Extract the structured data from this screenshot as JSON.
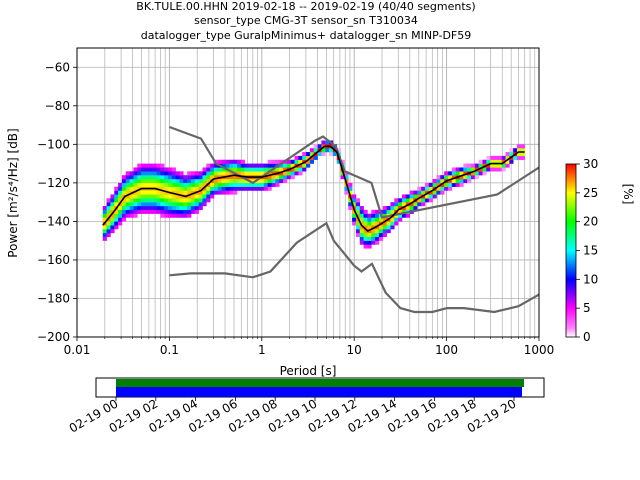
{
  "title": {
    "line1": "BK.TULE.00.HHN   2019-02-18 -- 2019-02-19  (40/40 segments)",
    "line2": "sensor_type CMG-3T sensor_sn T310034",
    "line3": "datalogger_type GuralpMinimus+ datalogger_sn MINP-DF59"
  },
  "chart_data": {
    "type": "heatmap",
    "x_scale": "log",
    "xlim": [
      0.01,
      1000
    ],
    "ylim": [
      -200,
      -50
    ],
    "xlabel": "Period [s]",
    "ylabel": "Power [m²/s⁴/Hz] [dB]",
    "x_ticks": [
      0.01,
      0.1,
      1,
      10,
      100,
      1000
    ],
    "x_tick_labels": [
      "0.01",
      "0.1",
      "1",
      "10",
      "100",
      "1000"
    ],
    "y_ticks": [
      -200,
      -180,
      -160,
      -140,
      -120,
      -100,
      -80,
      -60
    ],
    "y_tick_labels": [
      "−200",
      "−180",
      "−160",
      "−140",
      "−120",
      "−100",
      "−80",
      "−60"
    ],
    "grid": true,
    "colorbar": {
      "label": "[%]",
      "range": [
        0,
        30
      ],
      "ticks": [
        0,
        5,
        10,
        15,
        20,
        25,
        30
      ],
      "tick_labels": [
        "0",
        "5",
        "10",
        "15",
        "20",
        "25",
        "30"
      ],
      "colors": [
        "#ffffff",
        "#ff00ff",
        "#0000ff",
        "#00ffff",
        "#00ff00",
        "#ffff00",
        "#ff0000"
      ]
    },
    "mean_curve": {
      "x": [
        0.019,
        0.025,
        0.033,
        0.05,
        0.07,
        0.1,
        0.15,
        0.22,
        0.3,
        0.5,
        0.7,
        1.0,
        1.5,
        2.0,
        3.0,
        4.0,
        4.8,
        5.5,
        6.5,
        8.0,
        10,
        12,
        14,
        17,
        20,
        25,
        30,
        40,
        50,
        70,
        100,
        150,
        200,
        300,
        400,
        600,
        700
      ],
      "y": [
        -142,
        -135,
        -127,
        -123,
        -123,
        -125,
        -127,
        -124,
        -118,
        -116,
        -117,
        -117,
        -115,
        -113,
        -109,
        -104,
        -101,
        -101,
        -104,
        -118,
        -134,
        -142,
        -145,
        -143,
        -141,
        -138,
        -134,
        -131,
        -128,
        -124,
        -119,
        -116,
        -114,
        -110,
        -110,
        -104,
        -104
      ]
    },
    "spread": [
      6,
      7,
      8,
      9,
      9,
      9,
      8,
      7,
      6,
      6,
      5,
      5,
      4,
      3,
      3,
      2,
      2,
      2,
      2,
      3,
      5,
      7,
      6,
      6,
      5,
      5,
      4,
      4,
      3,
      3,
      3,
      3,
      2,
      2,
      2,
      2,
      2
    ],
    "noise_models": [
      {
        "x": [
          0.1,
          0.17,
          0.4,
          0.8,
          1.24,
          2.4,
          4.3,
          5.0,
          6.0,
          10,
          12,
          15.6,
          21.9,
          31.6,
          45,
          70,
          101,
          154,
          328,
          600,
          1000
        ],
        "y": [
          -168,
          -167,
          -167,
          -169,
          -166,
          -151,
          -143,
          -141,
          -150,
          -163,
          -166,
          -162,
          -177,
          -185,
          -187,
          -187,
          -185,
          -185,
          -187,
          -184,
          -178
        ]
      },
      {
        "x": [
          0.1,
          0.22,
          0.32,
          0.8,
          3.8,
          4.6,
          6.3,
          7.9,
          15.4,
          20,
          354,
          1000
        ],
        "y": [
          -91,
          -97,
          -110,
          -120,
          -98,
          -96,
          -101,
          -114,
          -120,
          -138,
          -126,
          -112
        ]
      }
    ],
    "timeline": {
      "tick_labels": [
        "02-19 00",
        "02-19 02",
        "02-19 04",
        "02-19 06",
        "02-19 08",
        "02-19 10",
        "02-19 12",
        "02-19 14",
        "02-19 16",
        "02-19 18",
        "02-19 20"
      ],
      "colors": {
        "data": "#0000ff",
        "coverage": "#008000"
      }
    }
  }
}
